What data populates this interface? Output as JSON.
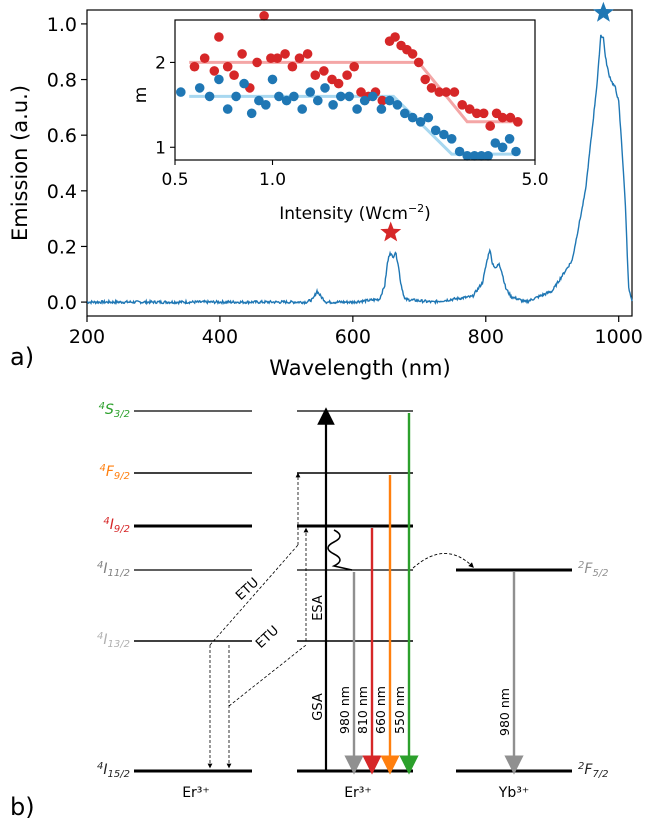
{
  "figure": {
    "panel_a_label": "a)",
    "panel_b_label": "b)"
  },
  "chart_data": [
    {
      "type": "line",
      "title": "",
      "xlabel": "Wavelength (nm)",
      "ylabel": "Emission (a.u.)",
      "xlim": [
        200,
        1020
      ],
      "ylim": [
        -0.05,
        1.05
      ],
      "xticks": [
        200,
        400,
        600,
        800,
        1000
      ],
      "yticks": [
        0.0,
        0.2,
        0.4,
        0.6,
        0.8,
        1.0
      ],
      "xtick_labels": [
        "200",
        "400",
        "600",
        "800",
        "1000"
      ],
      "ytick_labels": [
        "0.0",
        "0.2",
        "0.4",
        "0.6",
        "0.8",
        "1.0"
      ],
      "color": "#1f77b4",
      "series": [
        {
          "name": "emission",
          "x": [
            200,
            500,
            530,
            540,
            546,
            552,
            560,
            600,
            640,
            648,
            652,
            656,
            660,
            664,
            668,
            672,
            678,
            720,
            780,
            795,
            802,
            806,
            810,
            815,
            820,
            824,
            830,
            838,
            860,
            900,
            930,
            950,
            960,
            968,
            973,
            977,
            980,
            985,
            990,
            995,
            1000,
            1005,
            1010,
            1015,
            1020
          ],
          "y": [
            0.0,
            0.0,
            0.0,
            0.01,
            0.04,
            0.02,
            0.0,
            0.0,
            0.01,
            0.06,
            0.14,
            0.18,
            0.16,
            0.18,
            0.14,
            0.07,
            0.01,
            0.0,
            0.02,
            0.07,
            0.15,
            0.19,
            0.14,
            0.12,
            0.14,
            0.11,
            0.05,
            0.02,
            0.0,
            0.04,
            0.15,
            0.4,
            0.62,
            0.8,
            0.96,
            0.95,
            0.88,
            0.82,
            0.79,
            0.77,
            0.72,
            0.55,
            0.35,
            0.05,
            0.0
          ]
        }
      ],
      "markers": [
        {
          "name": "red-star",
          "x": 657,
          "y": 0.25,
          "color": "#d62728"
        },
        {
          "name": "blue-star",
          "x": 977,
          "y": 1.04,
          "color": "#1f77b4"
        }
      ]
    },
    {
      "type": "scatter",
      "inset": true,
      "xlabel": "Intensity (Wcm−2)",
      "ylabel": "m",
      "xscale": "log",
      "xlim": [
        0.55,
        5.0
      ],
      "ylim": [
        0.85,
        2.5
      ],
      "xticks": [
        0.5,
        1.0,
        5.0
      ],
      "xtick_labels": [
        "0.5",
        "1.0",
        "5.0"
      ],
      "yticks": [
        1,
        2
      ],
      "ytick_labels": [
        "1",
        "2"
      ],
      "series": [
        {
          "name": "red",
          "color": "#d62728",
          "x": [
            0.62,
            0.66,
            0.7,
            0.72,
            0.76,
            0.79,
            0.83,
            0.87,
            0.91,
            0.95,
            0.99,
            1.03,
            1.08,
            1.13,
            1.18,
            1.24,
            1.3,
            1.37,
            1.44,
            1.5,
            1.58,
            1.65,
            1.72,
            1.8,
            1.88,
            1.96,
            2.05,
            2.12,
            2.2,
            2.28,
            2.36,
            2.45,
            2.55,
            2.65,
            2.78,
            2.9,
            3.05,
            3.2,
            3.35,
            3.5,
            3.65,
            3.8,
            3.95,
            4.1,
            4.3,
            4.5
          ],
          "y": [
            1.95,
            2.05,
            1.9,
            2.3,
            1.95,
            1.85,
            2.1,
            1.7,
            2.0,
            2.55,
            2.05,
            2.05,
            2.1,
            1.95,
            2.05,
            2.1,
            1.85,
            1.9,
            1.8,
            1.75,
            1.85,
            1.95,
            1.65,
            1.6,
            1.65,
            1.55,
            2.25,
            2.3,
            2.2,
            2.15,
            2.1,
            2.0,
            1.8,
            1.7,
            1.65,
            1.65,
            1.65,
            1.5,
            1.45,
            1.4,
            1.4,
            1.25,
            1.4,
            1.35,
            1.35,
            1.3
          ]
        },
        {
          "name": "blue",
          "color": "#1f77b4",
          "x": [
            0.57,
            0.64,
            0.68,
            0.72,
            0.76,
            0.8,
            0.84,
            0.88,
            0.92,
            0.96,
            1.0,
            1.04,
            1.09,
            1.14,
            1.2,
            1.26,
            1.32,
            1.38,
            1.45,
            1.52,
            1.6,
            1.68,
            1.76,
            1.85,
            1.95,
            2.05,
            2.15,
            2.25,
            2.36,
            2.48,
            2.6,
            2.72,
            2.86,
            3.0,
            3.15,
            3.3,
            3.45,
            3.6,
            3.75,
            3.92,
            4.1,
            4.28,
            4.45
          ],
          "y": [
            1.65,
            1.7,
            1.6,
            1.8,
            1.45,
            1.6,
            1.75,
            1.4,
            1.55,
            1.5,
            1.8,
            1.6,
            1.55,
            1.6,
            1.45,
            1.65,
            1.55,
            1.7,
            1.5,
            1.6,
            1.6,
            1.45,
            1.55,
            1.6,
            1.45,
            1.55,
            1.5,
            1.4,
            1.35,
            1.3,
            1.35,
            1.2,
            1.15,
            1.1,
            0.95,
            0.9,
            0.9,
            0.9,
            0.9,
            1.05,
            1.0,
            1.1,
            0.95
          ]
        }
      ],
      "fits": [
        {
          "name": "red-fit",
          "color": "#f4a6a6",
          "x": [
            0.6,
            2.45,
            3.3,
            4.55
          ],
          "y": [
            2.0,
            2.0,
            1.3,
            1.3
          ]
        },
        {
          "name": "blue-fit",
          "color": "#a8d8f0",
          "x": [
            0.6,
            2.1,
            3.0,
            4.55
          ],
          "y": [
            1.6,
            1.6,
            0.92,
            0.92
          ]
        }
      ]
    }
  ],
  "diagram": {
    "species": [
      {
        "label": "Er³⁺"
      },
      {
        "label": "Er³⁺"
      },
      {
        "label": "Yb³⁺"
      }
    ],
    "er_levels": [
      {
        "prefix": "4",
        "main": "S",
        "sub": "3/2",
        "color": "#2ca02c"
      },
      {
        "prefix": "4",
        "main": "F",
        "sub": "9/2",
        "color": "#ff7f0e"
      },
      {
        "prefix": "4",
        "main": "I",
        "sub": "9/2",
        "color": "#d62728"
      },
      {
        "prefix": "4",
        "main": "I",
        "sub": "11/2",
        "color": "#808080"
      },
      {
        "prefix": "4",
        "main": "I",
        "sub": "13/2",
        "color": "#b0b0b0"
      },
      {
        "prefix": "4",
        "main": "I",
        "sub": "15/2",
        "color": "#222222"
      }
    ],
    "yb_levels": [
      {
        "prefix": "2",
        "main": "F",
        "sub": "5/2",
        "color": "#909090"
      },
      {
        "prefix": "2",
        "main": "F",
        "sub": "7/2",
        "color": "#222222"
      }
    ],
    "process_labels": {
      "etu": "ETU",
      "esa": "ESA",
      "gsa": "GSA"
    },
    "emissions": [
      {
        "label": "980 nm",
        "color": "#909090"
      },
      {
        "label": "810 nm",
        "color": "#d62728"
      },
      {
        "label": "660 nm",
        "color": "#ff7f0e"
      },
      {
        "label": "550 nm",
        "color": "#2ca02c"
      }
    ],
    "yb_emission_label": "980 nm"
  }
}
